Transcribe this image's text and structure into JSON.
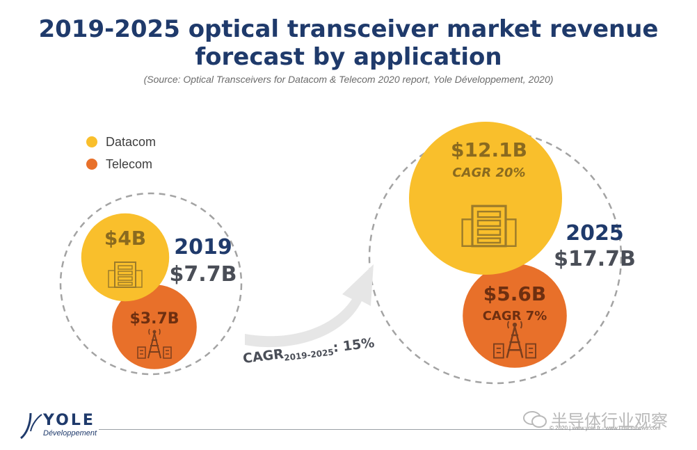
{
  "title_line1": "2019-2025 optical transceiver market revenue",
  "title_line2": "forecast by application",
  "source": "(Source: Optical Transceivers for Datacom & Telecom 2020 report, Yole Développement, 2020)",
  "colors": {
    "datacom": "#f9bf2c",
    "telecom": "#e8702a",
    "title": "#1f3a6b",
    "total": "#4a4e57",
    "cagr_arrow": "#e6e6e6"
  },
  "chart_data": {
    "type": "bubble",
    "legend": [
      {
        "name": "Datacom",
        "color": "#f9bf2c"
      },
      {
        "name": "Telecom",
        "color": "#e8702a"
      }
    ],
    "groups": [
      {
        "year": "2019",
        "total": "$7.7B",
        "total_value": 7.7,
        "bubbles": [
          {
            "series": "Datacom",
            "label": "$4B",
            "value": 4.0,
            "icon": "server-rack-icon"
          },
          {
            "series": "Telecom",
            "label": "$3.7B",
            "value": 3.7,
            "icon": "cell-tower-icon"
          }
        ]
      },
      {
        "year": "2025",
        "total": "$17.7B",
        "total_value": 17.7,
        "bubbles": [
          {
            "series": "Datacom",
            "label": "$12.1B",
            "value": 12.1,
            "cagr": "CAGR 20%",
            "icon": "server-rack-icon"
          },
          {
            "series": "Telecom",
            "label": "$5.6B",
            "value": 5.6,
            "cagr": "CAGR 7%",
            "icon": "cell-tower-icon"
          }
        ]
      }
    ],
    "overall_cagr": {
      "prefix": "CAGR",
      "period": "2019-2025",
      "value": ": 15%"
    }
  },
  "logo": {
    "name": "YOLE",
    "sub": "Développement"
  },
  "copyright": "© 2020 | www.yole.fr - www.i-micronews.com",
  "watermark": "半导体行业观察"
}
